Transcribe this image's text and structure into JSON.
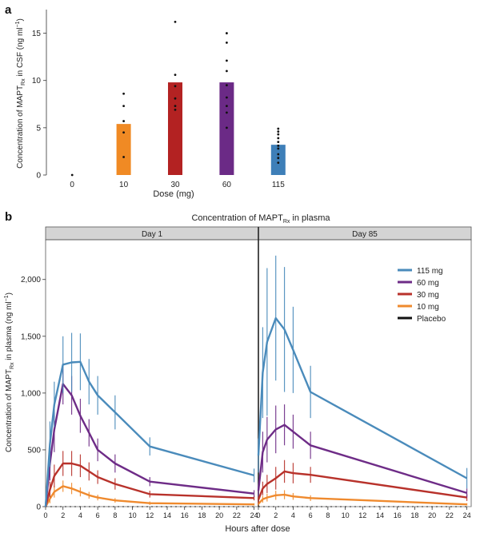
{
  "chart_data": [
    {
      "panel": "a",
      "type": "bar",
      "xlabel": "Dose (mg)",
      "ylabel": "Concentration of MAPT",
      "ylabel_sub": "Rx",
      "ylabel_tail": " in CSF (ng ml",
      "ylabel_sup": "−1",
      "ylabel_end": ")",
      "categories": [
        "0",
        "10",
        "30",
        "60",
        "115"
      ],
      "values": [
        0,
        5.4,
        9.8,
        9.8,
        3.2
      ],
      "colors": [
        "#333333",
        "#f08a24",
        "#b32222",
        "#6b2a86",
        "#3e7fb8"
      ],
      "points": [
        [
          0
        ],
        [
          8.6,
          7.3,
          5.7,
          4.5,
          1.9
        ],
        [
          16.2,
          10.6,
          9.4,
          8.1,
          7.3,
          6.9
        ],
        [
          15.0,
          14.0,
          12.1,
          11.0,
          9.5,
          8.2,
          7.3,
          6.6,
          5.0
        ],
        [
          4.9,
          4.6,
          4.3,
          3.9,
          3.5,
          3.1,
          2.8,
          2.2,
          1.8,
          1.3
        ]
      ],
      "yticks": [
        0,
        5,
        10,
        15
      ],
      "ylim": [
        0,
        17.5
      ]
    },
    {
      "panel": "b",
      "type": "line",
      "title": "Concentration of MAPT",
      "title_sub": "Rx",
      "title_tail": " in plasma",
      "facets": [
        "Day 1",
        "Day 85"
      ],
      "xlabel": "Hours after dose",
      "ylabel": "Concentration of MAPT",
      "ylabel_sub": "Rx",
      "ylabel_tail": " in plasma (ng ml",
      "ylabel_sup": "−1",
      "ylabel_end": ")",
      "xticks": [
        0,
        2,
        4,
        6,
        8,
        10,
        12,
        14,
        16,
        18,
        20,
        22,
        24
      ],
      "xlim": [
        0,
        24.5
      ],
      "yticks": [
        0,
        500,
        1000,
        1500,
        2000
      ],
      "ytick_labels": [
        "0",
        "500",
        "1,000",
        "1,500",
        "2,000"
      ],
      "ylim": [
        0,
        2350
      ],
      "legend_position": "top-right",
      "series": [
        {
          "name": "115 mg",
          "color": "#4a8bbb",
          "day1": {
            "x": [
              0,
              0.5,
              1,
              2,
              3,
              4,
              5,
              6,
              8,
              12,
              24
            ],
            "y": [
              0,
              550,
              900,
              1250,
              1270,
              1275,
              1100,
              980,
              830,
              530,
              275
            ],
            "err": [
              0,
              200,
              200,
              250,
              260,
              250,
              200,
              170,
              150,
              80,
              60
            ]
          },
          "day85": {
            "x": [
              0,
              0.5,
              1,
              2,
              3,
              4,
              6,
              24
            ],
            "y": [
              450,
              1180,
              1450,
              1660,
              1560,
              1380,
              1010,
              250
            ],
            "err": [
              150,
              400,
              650,
              550,
              550,
              380,
              230,
              90
            ]
          }
        },
        {
          "name": "60 mg",
          "color": "#6e2c87",
          "day1": {
            "x": [
              0,
              0.5,
              1,
              2,
              3,
              4,
              5,
              6,
              8,
              12,
              24
            ],
            "y": [
              0,
              380,
              680,
              1080,
              980,
              800,
              650,
              500,
              380,
              220,
              115
            ],
            "err": [
              0,
              150,
              200,
              180,
              170,
              150,
              120,
              100,
              80,
              40,
              30
            ]
          },
          "day85": {
            "x": [
              0,
              0.5,
              1,
              2,
              3,
              4,
              6,
              24
            ],
            "y": [
              140,
              480,
              590,
              680,
              720,
              660,
              540,
              120
            ],
            "err": [
              50,
              180,
              200,
              210,
              180,
              150,
              120,
              40
            ]
          }
        },
        {
          "name": "30 mg",
          "color": "#b8322b",
          "day1": {
            "x": [
              0,
              0.5,
              1,
              2,
              3,
              4,
              5,
              6,
              8,
              12,
              24
            ],
            "y": [
              0,
              150,
              270,
              380,
              380,
              360,
              310,
              260,
              200,
              110,
              75
            ],
            "err": [
              0,
              70,
              100,
              110,
              110,
              100,
              80,
              60,
              50,
              30,
              20
            ]
          },
          "day85": {
            "x": [
              0,
              0.5,
              1,
              2,
              3,
              4,
              6,
              24
            ],
            "y": [
              60,
              160,
              200,
              250,
              310,
              295,
              280,
              80
            ],
            "err": [
              30,
              60,
              80,
              100,
              100,
              90,
              70,
              30
            ]
          }
        },
        {
          "name": "10 mg",
          "color": "#ef8a2e",
          "day1": {
            "x": [
              0,
              0.5,
              1,
              2,
              3,
              4,
              5,
              6,
              8,
              12,
              24
            ],
            "y": [
              0,
              70,
              130,
              180,
              160,
              130,
              100,
              80,
              55,
              30,
              20
            ],
            "err": [
              0,
              40,
              50,
              50,
              50,
              40,
              30,
              25,
              20,
              15,
              10
            ]
          },
          "day85": {
            "x": [
              0,
              0.5,
              1,
              2,
              3,
              4,
              6,
              24
            ],
            "y": [
              25,
              65,
              80,
              100,
              105,
              90,
              75,
              20
            ],
            "err": [
              15,
              30,
              35,
              40,
              40,
              30,
              25,
              10
            ]
          }
        },
        {
          "name": "Placebo",
          "color": "#111111",
          "day1": {
            "x": [
              0,
              2,
              4,
              6,
              8,
              12,
              24
            ],
            "y": [
              0,
              0,
              0,
              0,
              0,
              0,
              0
            ],
            "err": []
          },
          "day85": {
            "x": [
              0,
              2,
              4,
              6,
              24
            ],
            "y": [
              0,
              0,
              0,
              0,
              0
            ],
            "err": []
          }
        }
      ]
    }
  ],
  "panel_labels": {
    "a": "a",
    "b": "b"
  }
}
